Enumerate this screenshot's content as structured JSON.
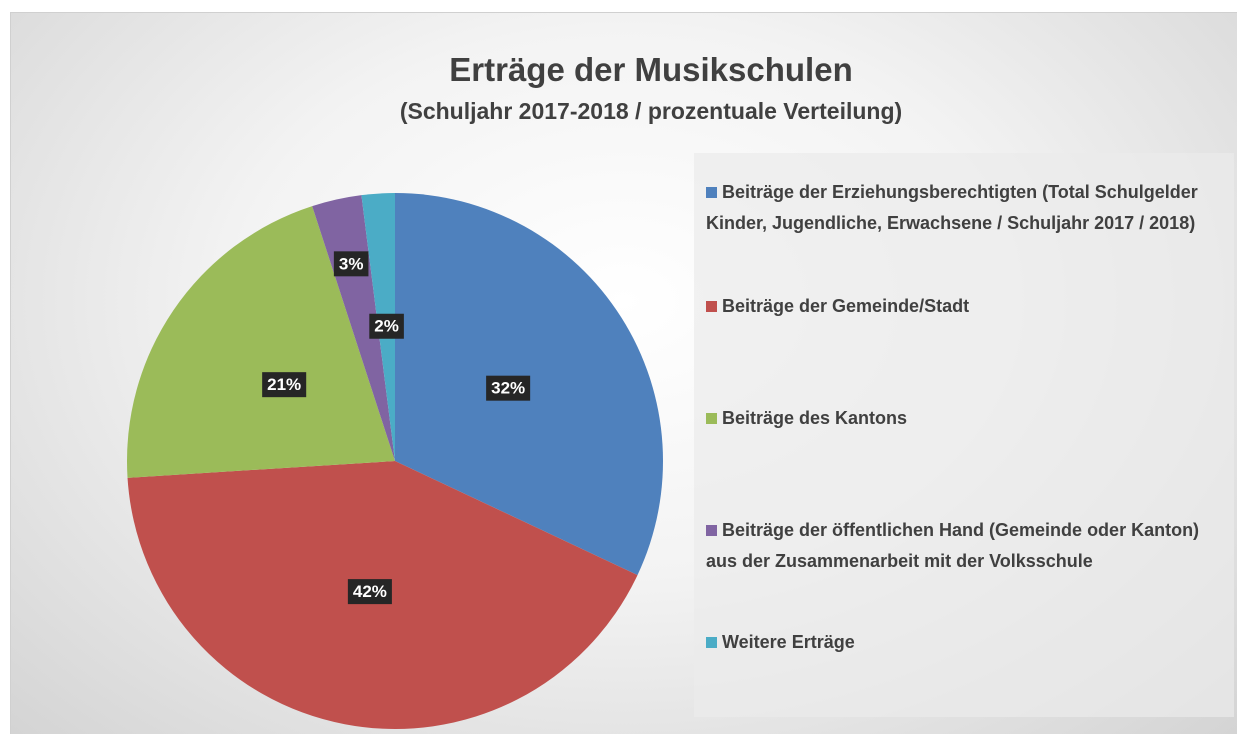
{
  "chart_data": {
    "type": "pie",
    "title": "Erträge der Musikschulen",
    "subtitle": "(Schuljahr 2017-2018 / prozentuale Verteilung)",
    "categories": [
      "Beiträge der Erziehungsberechtigten (Total Schulgelder Kinder, Jugendliche, Erwachsene / Schuljahr 2017 / 2018)",
      "Beiträge der Gemeinde/Stadt",
      "Beiträge des Kantons",
      "Beiträge der öffentlichen Hand (Gemeinde oder Kanton) aus der Zusammenarbeit mit der Volksschule",
      "Weitere Erträge"
    ],
    "values": [
      32,
      42,
      21,
      3,
      2
    ],
    "value_labels": [
      "32%",
      "42%",
      "21%",
      "3%",
      "2%"
    ],
    "colors": [
      "#4f81bd",
      "#c0504d",
      "#9bbb59",
      "#8064a2",
      "#4bacc6"
    ],
    "legend": "right"
  }
}
